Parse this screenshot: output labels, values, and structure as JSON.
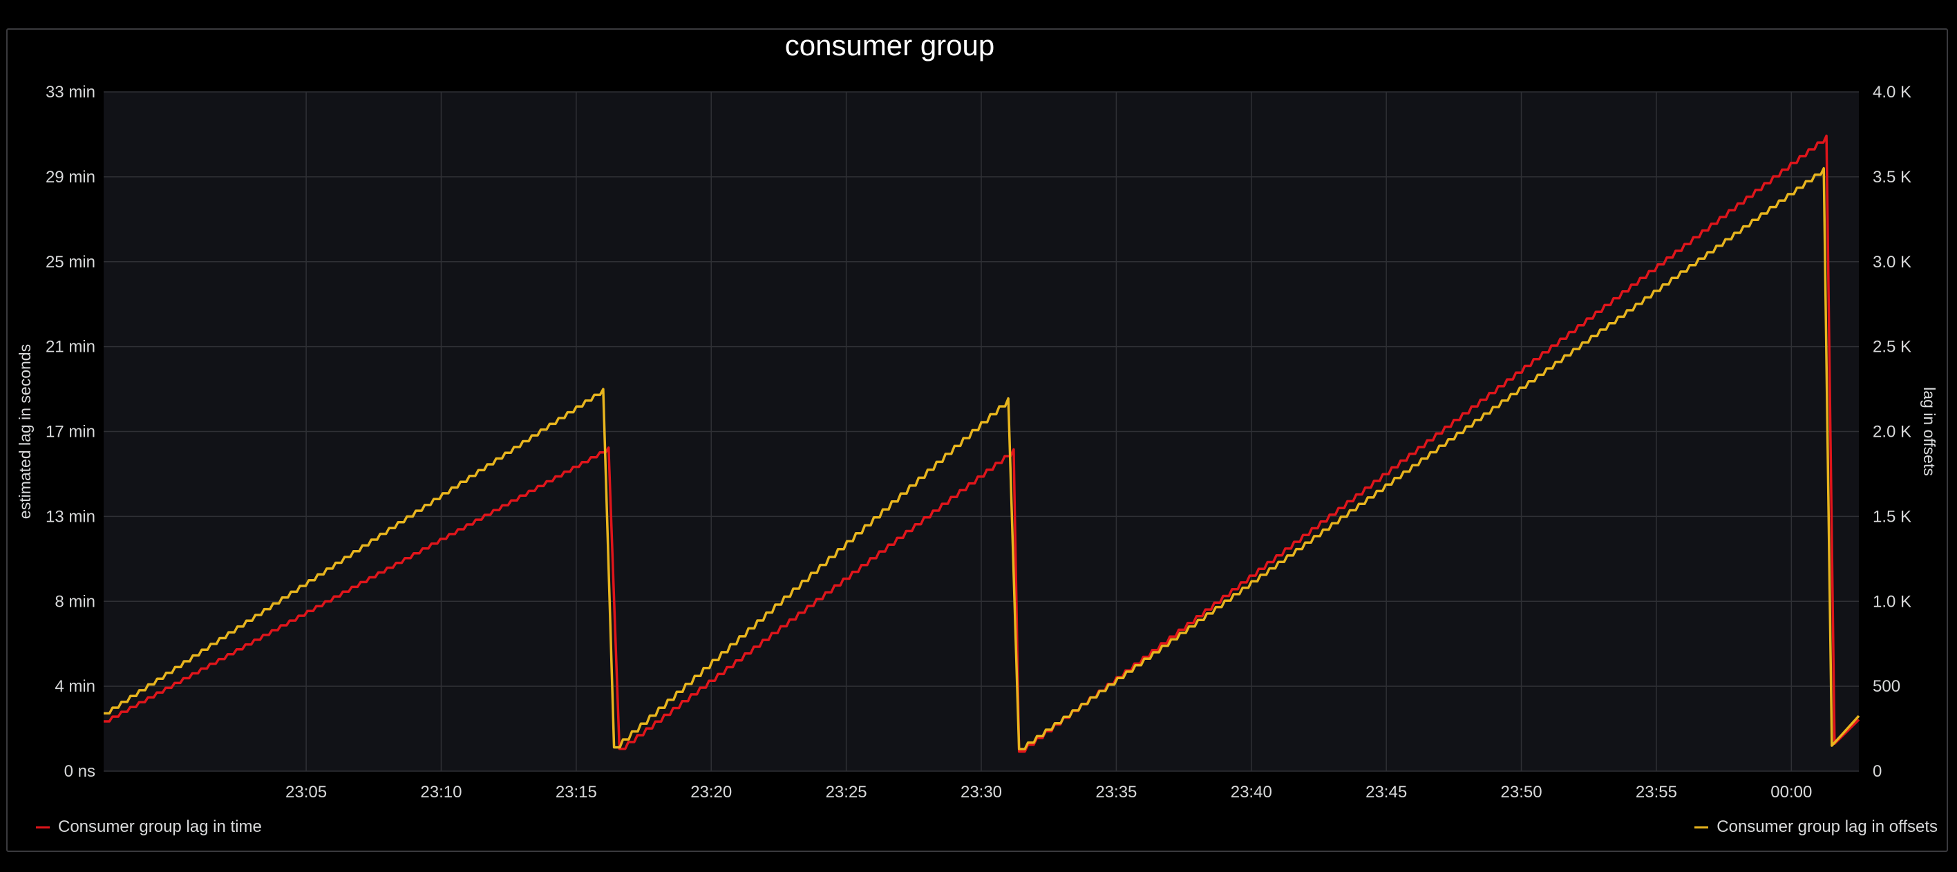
{
  "chart_data": {
    "type": "line",
    "title": "consumer group",
    "x_ticks": [
      "23:05",
      "23:10",
      "23:15",
      "23:20",
      "23:25",
      "23:30",
      "23:35",
      "23:40",
      "23:45",
      "23:50",
      "23:55",
      "00:00"
    ],
    "x_range_minutes": [
      -2.5,
      62.5
    ],
    "left_axis": {
      "label": "estimated lag in seconds",
      "tick_labels": [
        "0 ns",
        "4 min",
        "8 min",
        "13 min",
        "17 min",
        "21 min",
        "25 min",
        "29 min",
        "33 min"
      ],
      "range_seconds": [
        0,
        1980
      ]
    },
    "right_axis": {
      "label": "lag in offsets",
      "tick_labels": [
        "0",
        "500",
        "1.0 K",
        "1.5 K",
        "2.0 K",
        "2.5 K",
        "3.0 K",
        "3.5 K",
        "4.0 K"
      ],
      "range": [
        0,
        4000
      ]
    },
    "grid": true,
    "series": [
      {
        "name": "Consumer group lag in time",
        "axis": "left",
        "color": "#e0151b",
        "points": [
          [
            -2.5,
            145
          ],
          [
            16.2,
            943
          ],
          [
            16.6,
            65
          ],
          [
            31.2,
            938
          ],
          [
            31.4,
            57
          ],
          [
            61.3,
            1852
          ],
          [
            61.6,
            80
          ],
          [
            62.5,
            150
          ]
        ]
      },
      {
        "name": "Consumer group lag in offsets",
        "axis": "right",
        "color": "#e8b51e",
        "points": [
          [
            -2.5,
            340
          ],
          [
            16.0,
            2250
          ],
          [
            16.4,
            140
          ],
          [
            31.0,
            2195
          ],
          [
            31.4,
            130
          ],
          [
            61.2,
            3550
          ],
          [
            61.5,
            150
          ],
          [
            62.5,
            325
          ]
        ]
      }
    ]
  }
}
